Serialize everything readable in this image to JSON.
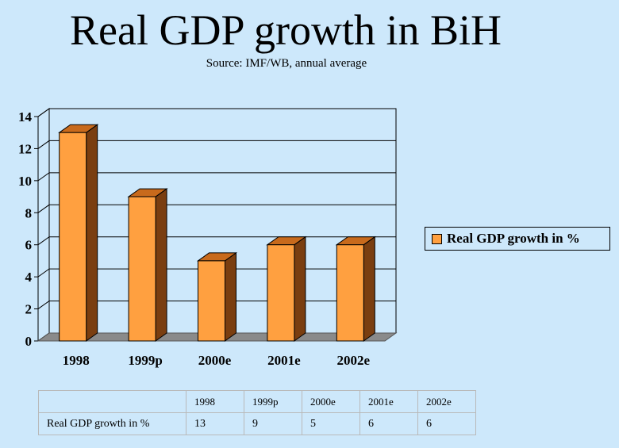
{
  "title": "Real GDP growth in BiH",
  "subtitle": "Source: IMF/WB, annual average",
  "colors": {
    "background": "#cde8fb",
    "bar_front": "#ffa040",
    "bar_side": "#7a3e10",
    "bar_top": "#c86a1c",
    "floor": "#8a8a8a"
  },
  "chart_data": {
    "type": "bar",
    "categories": [
      "1998",
      "1999p",
      "2000e",
      "2001e",
      "2002e"
    ],
    "series": [
      {
        "name": "Real GDP growth in %",
        "values": [
          13,
          9,
          5,
          6,
          6
        ]
      }
    ],
    "ylim": [
      0,
      14
    ],
    "yticks": [
      "0",
      "2",
      "4",
      "6",
      "8",
      "10",
      "12",
      "14"
    ],
    "grid": true,
    "legend": "right",
    "style": "3d-bar"
  },
  "table": {
    "header": [
      "",
      "1998",
      "1999p",
      "2000e",
      "2001e",
      "2002e"
    ],
    "rows": [
      [
        "Real GDP growth in %",
        "13",
        "9",
        "5",
        "6",
        "6"
      ]
    ]
  }
}
